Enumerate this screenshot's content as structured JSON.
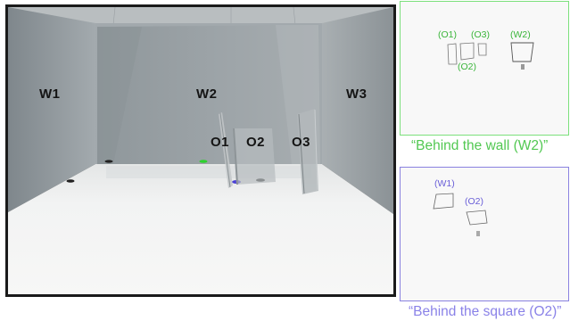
{
  "photo": {
    "labels": {
      "w1": "W1",
      "w2": "W2",
      "w3": "W3",
      "o1": "O1",
      "o2": "O2",
      "o3": "O3"
    }
  },
  "thumb_wall": {
    "labels": {
      "o1": "(O1)",
      "o3": "(O3)",
      "w2": "(W2)",
      "o2": "(O2)"
    },
    "caption": "“Behind the wall (W2)”",
    "border_color": "#7ce07c",
    "text_color": "#3ab53a"
  },
  "thumb_square": {
    "labels": {
      "w1": "(W1)",
      "o2": "(O2)"
    },
    "caption": "“Behind the square (O2)”",
    "border_color": "#8a82e0",
    "text_color": "#6a5fd8"
  }
}
